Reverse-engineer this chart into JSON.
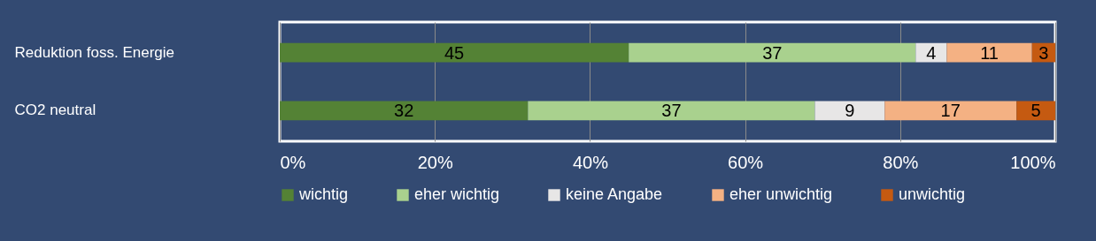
{
  "chart_data": {
    "type": "bar",
    "orientation": "horizontal",
    "stacked": true,
    "categories": [
      "Reduktion foss. Energie",
      "CO2 neutral"
    ],
    "series": [
      {
        "name": "wichtig",
        "color": "#548235",
        "values": [
          45,
          32
        ]
      },
      {
        "name": "eher wichtig",
        "color": "#a9d18e",
        "values": [
          37,
          37
        ]
      },
      {
        "name": "keine Angabe",
        "color": "#e7e6e6",
        "values": [
          4,
          9
        ]
      },
      {
        "name": "eher unwichtig",
        "color": "#f4b183",
        "values": [
          11,
          17
        ]
      },
      {
        "name": "unwichtig",
        "color": "#c55a11",
        "values": [
          3,
          5
        ]
      }
    ],
    "xlim": [
      0,
      100
    ],
    "xticks": [
      {
        "value": 0,
        "label": "0%"
      },
      {
        "value": 20,
        "label": "20%"
      },
      {
        "value": 40,
        "label": "40%"
      },
      {
        "value": 60,
        "label": "60%"
      },
      {
        "value": 80,
        "label": "80%"
      },
      {
        "value": 100,
        "label": "100%"
      }
    ],
    "grid": "x",
    "legend": "bottom",
    "data_labels": true
  }
}
